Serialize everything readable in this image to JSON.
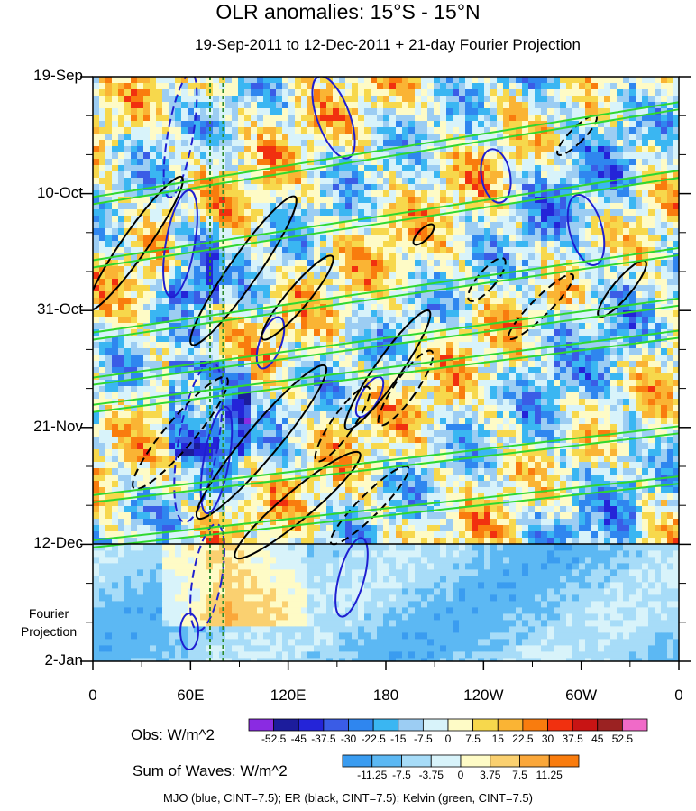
{
  "title": "OLR anomalies: 15°S - 15°N",
  "subtitle": "19-Sep-2011 to 12-Dec-2011 + 21-day Fourier Projection",
  "chart_data": {
    "type": "heatmap",
    "title": "OLR anomalies: 15°S - 15°N",
    "subtitle": "19-Sep-2011 to 12-Dec-2011 + 21-day Fourier Projection",
    "x_ticks": [
      "0",
      "60E",
      "120E",
      "180",
      "120W",
      "60W",
      "0"
    ],
    "x_tick_lon": [
      0,
      60,
      120,
      180,
      240,
      300,
      360
    ],
    "xlim": [
      0,
      360
    ],
    "y_ticks": [
      "19-Sep",
      "10-Oct",
      "31-Oct",
      "21-Nov",
      "12-Dec",
      "2-Jan"
    ],
    "y_tick_day": [
      0,
      21,
      42,
      63,
      84,
      105
    ],
    "ylim": [
      "19-Sep-2011",
      "2-Jan-2012"
    ],
    "observation_end": "12-Dec",
    "projection_label": "Fourier Projection",
    "reference_lines_lon": [
      72,
      80
    ],
    "reference_line_color": "#2e8b2e",
    "obs_colorbar": {
      "label": "Obs: W/m^2",
      "levels": [
        "-52.5",
        "-45",
        "-37.5",
        "-30",
        "-22.5",
        "-15",
        "-7.5",
        "0",
        "7.5",
        "15",
        "22.5",
        "30",
        "37.5",
        "45",
        "52.5"
      ],
      "colors": [
        "#8a2be2",
        "#1c1c9c",
        "#2424d8",
        "#3a5ce6",
        "#2f86ef",
        "#3ab6f2",
        "#9ccdf3",
        "#d8f3fa",
        "#fefbc6",
        "#f7d84c",
        "#fab434",
        "#f97c0e",
        "#f1300f",
        "#c81414",
        "#9b2222",
        "#f06ac8"
      ]
    },
    "waves_colorbar": {
      "label": "Sum of Waves: W/m^2",
      "levels": [
        "-11.25",
        "-7.5",
        "-3.75",
        "0",
        "3.75",
        "7.5",
        "11.25"
      ],
      "colors": [
        "#3a9cf0",
        "#5cb8f3",
        "#a7dcf8",
        "#d8f3fa",
        "#fefbc6",
        "#fad070",
        "#faa73a",
        "#f97c0e"
      ]
    },
    "contours": [
      {
        "name": "MJO",
        "color": "blue",
        "cint": 7.5
      },
      {
        "name": "ER",
        "color": "black",
        "cint": 7.5
      },
      {
        "name": "Kelvin",
        "color": "green",
        "cint": 7.5
      }
    ]
  },
  "legend_note": "MJO (blue, CINT=7.5); ER (black, CINT=7.5); Kelvin (green, CINT=7.5)"
}
